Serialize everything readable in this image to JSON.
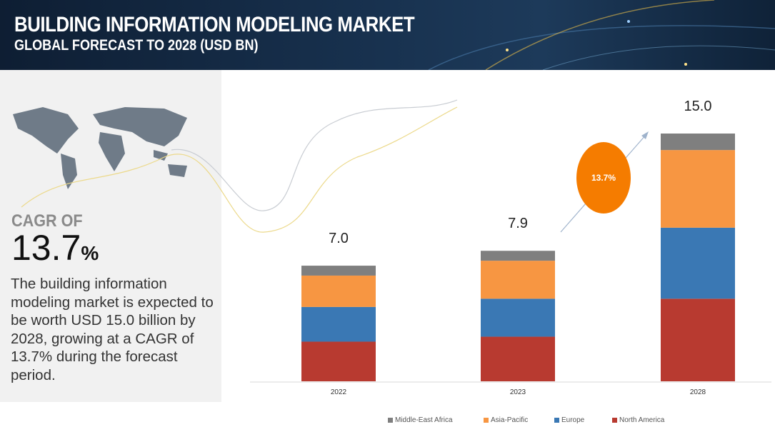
{
  "header": {
    "title": "BUILDING INFORMATION MODELING  MARKET",
    "subtitle": "GLOBAL FORECAST TO 2028 (USD BN)"
  },
  "summary": {
    "cagr_label": "CAGR OF",
    "cagr_value": "13.7",
    "cagr_unit": "%",
    "description": "The building information modeling  market is expected to be worth USD 15.0 billion by 2028, growing at a CAGR of 13.7% during the forecast period."
  },
  "chart_data": {
    "type": "bar",
    "stacked": true,
    "title": "Building Information Modeling Market, Global Forecast to 2028 (USD BN)",
    "categories": [
      "2022",
      "2023",
      "2028"
    ],
    "totals": [
      "7.0",
      "7.9",
      "15.0"
    ],
    "series": [
      {
        "name": "North America",
        "color": "#b83a30",
        "values": [
          2.4,
          2.7,
          5.0
        ]
      },
      {
        "name": "Europe",
        "color": "#3a78b4",
        "values": [
          2.1,
          2.3,
          4.3
        ]
      },
      {
        "name": "Asia-Pacific",
        "color": "#f79642",
        "values": [
          1.9,
          2.3,
          4.7
        ]
      },
      {
        "name": "Middle-East Africa",
        "color": "#7f7f7f",
        "values": [
          0.6,
          0.6,
          1.0
        ]
      }
    ],
    "legend_order": [
      "Middle-East Africa",
      "Asia-Pacific",
      "Europe",
      "North America"
    ],
    "legend_position": "bottom",
    "annotation": "13.7%",
    "ylim": [
      0,
      15
    ]
  }
}
